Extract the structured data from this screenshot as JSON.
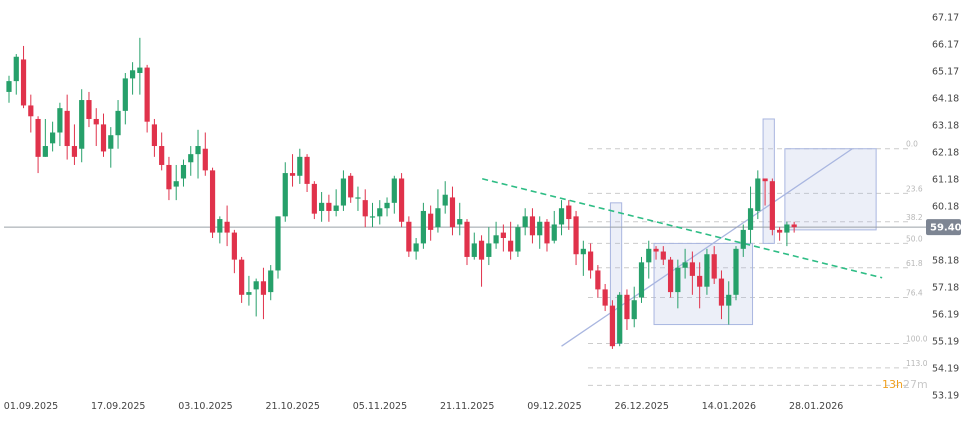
{
  "chart_data": {
    "type": "candlestick",
    "colors": {
      "up": "#26a06a",
      "down": "#e0324b",
      "trendline": "#2ebd85",
      "overlay": "#a9b6e0",
      "fib": "#cccccc",
      "price_tag": "#7d8593"
    },
    "ylim": [
      53.3,
      67.5
    ],
    "y_ticks": [
      67.17,
      66.17,
      65.17,
      64.18,
      63.18,
      62.18,
      61.18,
      60.18,
      58.18,
      57.18,
      56.19,
      55.19,
      54.19,
      53.19
    ],
    "y_tick_labels": [
      "67.17",
      "66.17",
      "65.17",
      "64.18",
      "63.18",
      "62.18",
      "61.18",
      "60.18",
      "58.18",
      "57.18",
      "56.19",
      "55.19",
      "54.19",
      "53.19"
    ],
    "x_ticks": [
      "01.09.2025",
      "17.09.2025",
      "03.10.2025",
      "21.10.2025",
      "05.11.2025",
      "21.11.2025",
      "09.12.2025",
      "26.12.2025",
      "14.01.2026",
      "28.01.2026"
    ],
    "x_tick_index": [
      0,
      12,
      24,
      36,
      48,
      60,
      72,
      84,
      96,
      108
    ],
    "candles": [
      [
        64.4,
        64.8,
        64.0,
        65.0
      ],
      [
        64.8,
        65.7,
        64.3,
        65.8
      ],
      [
        65.6,
        63.9,
        63.8,
        66.1
      ],
      [
        63.9,
        63.5,
        62.9,
        64.3
      ],
      [
        63.4,
        62.0,
        61.4,
        63.5
      ],
      [
        62.0,
        62.4,
        62.0,
        63.4
      ],
      [
        62.5,
        62.9,
        62.2,
        63.3
      ],
      [
        62.9,
        63.8,
        62.4,
        64.0
      ],
      [
        63.7,
        62.4,
        61.9,
        64.3
      ],
      [
        62.4,
        62.0,
        61.7,
        63.2
      ],
      [
        62.3,
        64.1,
        61.8,
        64.5
      ],
      [
        64.1,
        63.4,
        63.1,
        64.4
      ],
      [
        63.4,
        63.2,
        62.4,
        63.8
      ],
      [
        63.2,
        62.2,
        62.0,
        63.6
      ],
      [
        62.3,
        62.8,
        61.6,
        63.1
      ],
      [
        62.8,
        63.7,
        62.3,
        64.1
      ],
      [
        63.7,
        64.9,
        63.2,
        65.1
      ],
      [
        64.9,
        65.2,
        64.3,
        65.5
      ],
      [
        65.1,
        65.3,
        64.3,
        66.4
      ],
      [
        65.3,
        63.3,
        62.9,
        65.4
      ],
      [
        63.2,
        62.4,
        62.0,
        63.4
      ],
      [
        62.4,
        61.7,
        61.5,
        62.9
      ],
      [
        61.7,
        60.8,
        60.4,
        62.0
      ],
      [
        60.9,
        61.1,
        60.4,
        61.7
      ],
      [
        61.2,
        61.7,
        60.9,
        61.9
      ],
      [
        61.8,
        62.1,
        61.3,
        62.4
      ],
      [
        62.1,
        62.4,
        61.2,
        63.0
      ],
      [
        62.3,
        61.5,
        61.3,
        62.9
      ],
      [
        61.5,
        59.2,
        59.0,
        61.6
      ],
      [
        59.2,
        59.7,
        58.8,
        59.8
      ],
      [
        59.6,
        59.2,
        58.7,
        60.2
      ],
      [
        59.2,
        58.2,
        57.7,
        59.3
      ],
      [
        58.2,
        56.9,
        56.6,
        58.3
      ],
      [
        56.9,
        57.0,
        56.5,
        57.6
      ],
      [
        57.1,
        57.4,
        56.1,
        57.5
      ],
      [
        57.4,
        56.9,
        56.0,
        57.9
      ],
      [
        57.0,
        57.8,
        56.7,
        58.0
      ],
      [
        57.8,
        59.8,
        57.5,
        59.8
      ],
      [
        59.8,
        61.4,
        59.6,
        61.8
      ],
      [
        61.4,
        61.3,
        60.9,
        62.1
      ],
      [
        61.3,
        62.0,
        61.0,
        62.3
      ],
      [
        62.0,
        61.0,
        60.7,
        62.1
      ],
      [
        61.0,
        59.9,
        59.7,
        61.1
      ],
      [
        60.0,
        60.3,
        59.6,
        60.7
      ],
      [
        60.3,
        60.0,
        59.6,
        60.6
      ],
      [
        60.0,
        60.2,
        59.8,
        60.8
      ],
      [
        60.2,
        61.2,
        60.0,
        61.5
      ],
      [
        61.3,
        60.5,
        60.3,
        61.4
      ],
      [
        60.5,
        60.5,
        60.0,
        60.9
      ],
      [
        60.4,
        59.8,
        59.4,
        60.8
      ],
      [
        59.8,
        59.8,
        59.4,
        60.3
      ],
      [
        59.8,
        60.1,
        59.5,
        60.4
      ],
      [
        60.1,
        60.3,
        59.8,
        60.5
      ],
      [
        60.3,
        61.2,
        59.9,
        61.3
      ],
      [
        61.2,
        59.6,
        59.4,
        61.4
      ],
      [
        59.6,
        58.5,
        58.3,
        59.8
      ],
      [
        58.5,
        58.8,
        58.2,
        59.0
      ],
      [
        58.8,
        60.0,
        58.6,
        60.3
      ],
      [
        59.9,
        59.3,
        58.9,
        60.2
      ],
      [
        59.4,
        60.1,
        59.2,
        60.8
      ],
      [
        60.2,
        60.6,
        59.9,
        61.1
      ],
      [
        60.5,
        59.4,
        59.1,
        60.9
      ],
      [
        59.5,
        59.7,
        59.1,
        60.3
      ],
      [
        59.6,
        58.3,
        58.0,
        59.7
      ],
      [
        58.3,
        58.8,
        58.2,
        59.2
      ],
      [
        58.9,
        58.2,
        57.2,
        59.1
      ],
      [
        58.3,
        58.8,
        58.0,
        59.4
      ],
      [
        58.8,
        59.1,
        58.6,
        59.6
      ],
      [
        59.2,
        59.0,
        58.5,
        59.5
      ],
      [
        58.9,
        58.5,
        58.2,
        59.6
      ],
      [
        58.5,
        59.4,
        58.3,
        59.5
      ],
      [
        59.4,
        59.8,
        59.1,
        60.1
      ],
      [
        59.8,
        59.1,
        58.8,
        60.1
      ],
      [
        59.1,
        59.6,
        58.6,
        59.8
      ],
      [
        59.6,
        58.8,
        58.5,
        59.7
      ],
      [
        58.9,
        59.5,
        58.8,
        60.0
      ],
      [
        59.5,
        60.1,
        59.1,
        60.4
      ],
      [
        60.2,
        59.7,
        59.3,
        60.4
      ],
      [
        59.8,
        58.4,
        58.0,
        60.0
      ],
      [
        58.4,
        58.6,
        57.6,
        58.9
      ],
      [
        58.5,
        57.8,
        57.5,
        58.8
      ],
      [
        57.8,
        57.1,
        56.8,
        58.0
      ],
      [
        57.1,
        56.5,
        56.3,
        57.3
      ],
      [
        56.5,
        55.0,
        54.9,
        56.7
      ],
      [
        55.1,
        56.9,
        55.0,
        57.0
      ],
      [
        56.9,
        56.0,
        55.6,
        57.1
      ],
      [
        56.0,
        56.7,
        55.7,
        57.2
      ],
      [
        56.8,
        58.1,
        56.6,
        58.3
      ],
      [
        58.1,
        58.6,
        57.5,
        58.9
      ],
      [
        58.6,
        58.5,
        58.2,
        58.7
      ],
      [
        58.5,
        58.2,
        58.0,
        58.7
      ],
      [
        58.2,
        57.0,
        56.8,
        58.3
      ],
      [
        57.0,
        57.9,
        56.4,
        58.2
      ],
      [
        57.9,
        58.1,
        57.5,
        58.6
      ],
      [
        58.1,
        57.6,
        56.9,
        58.5
      ],
      [
        57.6,
        57.2,
        56.4,
        58.1
      ],
      [
        57.2,
        58.4,
        56.9,
        58.6
      ],
      [
        58.4,
        57.5,
        57.3,
        58.7
      ],
      [
        57.5,
        56.5,
        56.0,
        57.8
      ],
      [
        56.5,
        56.9,
        55.8,
        57.4
      ],
      [
        56.9,
        58.6,
        56.7,
        58.7
      ],
      [
        58.6,
        59.3,
        58.3,
        59.5
      ],
      [
        59.3,
        60.1,
        58.8,
        60.9
      ],
      [
        60.0,
        61.2,
        59.7,
        61.5
      ],
      [
        61.2,
        61.1,
        60.2,
        61.2
      ],
      [
        61.1,
        59.3,
        59.1,
        61.2
      ],
      [
        59.3,
        59.2,
        58.9,
        59.4
      ],
      [
        59.2,
        59.5,
        58.7,
        59.6
      ],
      [
        59.5,
        59.4,
        59.2,
        59.6
      ]
    ],
    "trendline": [
      [
        60,
        61.3
      ],
      [
        119,
        57.9
      ]
    ],
    "fib_levels": [
      {
        "label": "0.0",
        "value": 62.3
      },
      {
        "label": "23.6",
        "value": 60.65
      },
      {
        "label": "38.2",
        "value": 59.6
      },
      {
        "label": "50.0",
        "value": 58.8
      },
      {
        "label": "61.8",
        "value": 57.9
      },
      {
        "label": "76.4",
        "value": 56.8
      },
      {
        "label": "100.0",
        "value": 55.1
      },
      {
        "label": "113.0",
        "value": 54.2
      },
      {
        "label": "",
        "value": 53.55
      }
    ],
    "horizontal_line": 59.4,
    "last_price_label": "59.40",
    "overlays": [
      {
        "kind": "box",
        "i0": 83,
        "i1": 84,
        "low": 55.1,
        "high": 60.3
      },
      {
        "kind": "box",
        "i0": 89,
        "i1": 102,
        "low": 55.8,
        "high": 58.8
      },
      {
        "kind": "box",
        "i0": 104,
        "i1": 105,
        "low": 58.8,
        "high": 63.4
      },
      {
        "kind": "box",
        "i0": 107,
        "i1": 119,
        "low": 59.3,
        "high": 62.3
      },
      {
        "kind": "line",
        "i0": 76,
        "p0": 55.0,
        "i1": 116,
        "p1": 62.3
      }
    ],
    "countdown": {
      "hours": "13h",
      "minutes": "27m"
    }
  }
}
